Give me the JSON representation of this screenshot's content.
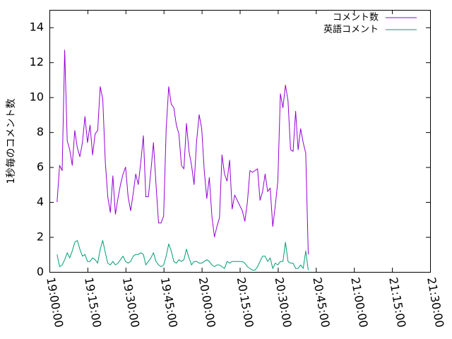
{
  "chart_data": {
    "type": "line",
    "title": "",
    "xlabel": "",
    "ylabel": "1秒毎のコメント数",
    "xlim": [
      "19:00:00",
      "21:30:00"
    ],
    "ylim": [
      0,
      15
    ],
    "grid": false,
    "legend_position": "top-right",
    "yticks": [
      0,
      2,
      4,
      6,
      8,
      10,
      12,
      14
    ],
    "xticks": [
      "19:00:00",
      "19:15:00",
      "19:30:00",
      "19:45:00",
      "20:00:00",
      "20:15:00",
      "20:30:00",
      "20:45:00",
      "21:00:00",
      "21:15:00",
      "21:30:00"
    ],
    "series": [
      {
        "name": "コメント数",
        "color": "#9400d3",
        "points": [
          [
            "19:03:00",
            4.0
          ],
          [
            "19:04:00",
            6.1
          ],
          [
            "19:05:00",
            5.8
          ],
          [
            "19:06:00",
            12.7
          ],
          [
            "19:07:00",
            7.5
          ],
          [
            "19:08:00",
            7.0
          ],
          [
            "19:09:00",
            6.1
          ],
          [
            "19:10:00",
            8.1
          ],
          [
            "19:11:00",
            7.1
          ],
          [
            "19:12:00",
            6.6
          ],
          [
            "19:13:00",
            7.4
          ],
          [
            "19:14:00",
            8.9
          ],
          [
            "19:15:00",
            7.4
          ],
          [
            "19:16:00",
            8.4
          ],
          [
            "19:17:00",
            6.7
          ],
          [
            "19:18:00",
            7.9
          ],
          [
            "19:19:00",
            8.1
          ],
          [
            "19:20:00",
            10.6
          ],
          [
            "19:21:00",
            9.9
          ],
          [
            "19:22:00",
            6.3
          ],
          [
            "19:23:00",
            4.3
          ],
          [
            "19:24:00",
            3.4
          ],
          [
            "19:25:00",
            5.5
          ],
          [
            "19:26:00",
            3.3
          ],
          [
            "19:27:00",
            4.2
          ],
          [
            "19:28:00",
            5.0
          ],
          [
            "19:29:00",
            5.6
          ],
          [
            "19:30:00",
            6.0
          ],
          [
            "19:31:00",
            4.3
          ],
          [
            "19:32:00",
            3.5
          ],
          [
            "19:33:00",
            4.5
          ],
          [
            "19:34:00",
            5.6
          ],
          [
            "19:35:00",
            5.0
          ],
          [
            "19:36:00",
            6.3
          ],
          [
            "19:37:00",
            7.8
          ],
          [
            "19:38:00",
            4.3
          ],
          [
            "19:39:00",
            4.3
          ],
          [
            "19:40:00",
            5.8
          ],
          [
            "19:41:00",
            7.4
          ],
          [
            "19:42:00",
            5.0
          ],
          [
            "19:43:00",
            2.8
          ],
          [
            "19:44:00",
            2.8
          ],
          [
            "19:45:00",
            3.2
          ],
          [
            "19:46:00",
            8.2
          ],
          [
            "19:47:00",
            10.6
          ],
          [
            "19:48:00",
            9.6
          ],
          [
            "19:49:00",
            9.4
          ],
          [
            "19:50:00",
            8.4
          ],
          [
            "19:51:00",
            7.9
          ],
          [
            "19:52:00",
            6.1
          ],
          [
            "19:53:00",
            5.9
          ],
          [
            "19:54:00",
            8.5
          ],
          [
            "19:55:00",
            6.9
          ],
          [
            "19:56:00",
            6.1
          ],
          [
            "19:57:00",
            5.0
          ],
          [
            "19:58:00",
            7.5
          ],
          [
            "19:59:00",
            9.0
          ],
          [
            "20:00:00",
            8.2
          ],
          [
            "20:01:00",
            5.8
          ],
          [
            "20:02:00",
            4.2
          ],
          [
            "20:03:00",
            5.4
          ],
          [
            "20:04:00",
            3.2
          ],
          [
            "20:05:00",
            2.0
          ],
          [
            "20:06:00",
            2.6
          ],
          [
            "20:07:00",
            3.1
          ],
          [
            "20:08:00",
            6.7
          ],
          [
            "20:09:00",
            5.6
          ],
          [
            "20:10:00",
            5.2
          ],
          [
            "20:11:00",
            6.4
          ],
          [
            "20:12:00",
            3.6
          ],
          [
            "20:13:00",
            4.4
          ],
          [
            "20:14:00",
            4.1
          ],
          [
            "20:15:00",
            3.8
          ],
          [
            "20:16:00",
            3.5
          ],
          [
            "20:17:00",
            2.9
          ],
          [
            "20:18:00",
            4.0
          ],
          [
            "20:19:00",
            5.8
          ],
          [
            "20:20:00",
            5.7
          ],
          [
            "20:21:00",
            5.8
          ],
          [
            "20:22:00",
            5.9
          ],
          [
            "20:23:00",
            4.1
          ],
          [
            "20:24:00",
            4.6
          ],
          [
            "20:25:00",
            5.6
          ],
          [
            "20:26:00",
            4.6
          ],
          [
            "20:27:00",
            4.8
          ],
          [
            "20:28:00",
            2.6
          ],
          [
            "20:29:00",
            3.8
          ],
          [
            "20:30:00",
            5.2
          ],
          [
            "20:31:00",
            10.2
          ],
          [
            "20:32:00",
            9.4
          ],
          [
            "20:33:00",
            10.7
          ],
          [
            "20:34:00",
            9.8
          ],
          [
            "20:35:00",
            7.0
          ],
          [
            "20:36:00",
            6.9
          ],
          [
            "20:37:00",
            9.2
          ],
          [
            "20:38:00",
            7.0
          ],
          [
            "20:39:00",
            8.2
          ],
          [
            "20:40:00",
            7.4
          ],
          [
            "20:41:00",
            6.8
          ],
          [
            "20:42:00",
            1.0
          ]
        ]
      },
      {
        "name": "英語コメント",
        "color": "#009e73",
        "points": [
          [
            "19:03:00",
            1.0
          ],
          [
            "19:04:00",
            0.3
          ],
          [
            "19:05:00",
            0.4
          ],
          [
            "19:06:00",
            0.7
          ],
          [
            "19:07:00",
            1.1
          ],
          [
            "19:08:00",
            0.8
          ],
          [
            "19:09:00",
            1.2
          ],
          [
            "19:10:00",
            1.7
          ],
          [
            "19:11:00",
            1.8
          ],
          [
            "19:12:00",
            1.3
          ],
          [
            "19:13:00",
            0.9
          ],
          [
            "19:14:00",
            1.0
          ],
          [
            "19:15:00",
            0.6
          ],
          [
            "19:16:00",
            0.6
          ],
          [
            "19:17:00",
            0.8
          ],
          [
            "19:18:00",
            0.7
          ],
          [
            "19:19:00",
            0.5
          ],
          [
            "19:20:00",
            1.3
          ],
          [
            "19:21:00",
            1.8
          ],
          [
            "19:22:00",
            1.1
          ],
          [
            "19:23:00",
            0.5
          ],
          [
            "19:24:00",
            0.4
          ],
          [
            "19:25:00",
            0.6
          ],
          [
            "19:26:00",
            0.4
          ],
          [
            "19:27:00",
            0.5
          ],
          [
            "19:28:00",
            0.7
          ],
          [
            "19:29:00",
            0.9
          ],
          [
            "19:30:00",
            0.6
          ],
          [
            "19:31:00",
            0.5
          ],
          [
            "19:32:00",
            0.6
          ],
          [
            "19:33:00",
            0.9
          ],
          [
            "19:34:00",
            1.0
          ],
          [
            "19:35:00",
            1.0
          ],
          [
            "19:36:00",
            1.1
          ],
          [
            "19:37:00",
            1.0
          ],
          [
            "19:38:00",
            0.4
          ],
          [
            "19:39:00",
            0.6
          ],
          [
            "19:40:00",
            0.8
          ],
          [
            "19:41:00",
            1.1
          ],
          [
            "19:42:00",
            0.6
          ],
          [
            "19:43:00",
            0.4
          ],
          [
            "19:44:00",
            0.3
          ],
          [
            "19:45:00",
            0.4
          ],
          [
            "19:46:00",
            0.9
          ],
          [
            "19:47:00",
            1.6
          ],
          [
            "19:48:00",
            1.2
          ],
          [
            "19:49:00",
            0.6
          ],
          [
            "19:50:00",
            0.5
          ],
          [
            "19:51:00",
            0.7
          ],
          [
            "19:52:00",
            0.6
          ],
          [
            "19:53:00",
            0.7
          ],
          [
            "19:54:00",
            1.3
          ],
          [
            "19:55:00",
            0.8
          ],
          [
            "19:56:00",
            0.4
          ],
          [
            "19:57:00",
            0.6
          ],
          [
            "19:58:00",
            0.6
          ],
          [
            "19:59:00",
            0.5
          ],
          [
            "20:00:00",
            0.5
          ],
          [
            "20:01:00",
            0.6
          ],
          [
            "20:02:00",
            0.7
          ],
          [
            "20:03:00",
            0.6
          ],
          [
            "20:04:00",
            0.4
          ],
          [
            "20:05:00",
            0.3
          ],
          [
            "20:06:00",
            0.4
          ],
          [
            "20:07:00",
            0.4
          ],
          [
            "20:08:00",
            0.3
          ],
          [
            "20:09:00",
            0.2
          ],
          [
            "20:10:00",
            0.6
          ],
          [
            "20:11:00",
            0.5
          ],
          [
            "20:12:00",
            0.6
          ],
          [
            "20:13:00",
            0.6
          ],
          [
            "20:14:00",
            0.6
          ],
          [
            "20:15:00",
            0.6
          ],
          [
            "20:16:00",
            0.6
          ],
          [
            "20:17:00",
            0.5
          ],
          [
            "20:18:00",
            0.3
          ],
          [
            "20:19:00",
            0.2
          ],
          [
            "20:20:00",
            0.1
          ],
          [
            "20:21:00",
            0.1
          ],
          [
            "20:22:00",
            0.3
          ],
          [
            "20:23:00",
            0.6
          ],
          [
            "20:24:00",
            0.9
          ],
          [
            "20:25:00",
            0.9
          ],
          [
            "20:26:00",
            0.6
          ],
          [
            "20:27:00",
            0.8
          ],
          [
            "20:28:00",
            0.2
          ],
          [
            "20:29:00",
            0.5
          ],
          [
            "20:30:00",
            0.4
          ],
          [
            "20:31:00",
            0.6
          ],
          [
            "20:32:00",
            0.6
          ],
          [
            "20:33:00",
            1.7
          ],
          [
            "20:34:00",
            0.6
          ],
          [
            "20:35:00",
            0.5
          ],
          [
            "20:36:00",
            0.5
          ],
          [
            "20:37:00",
            0.2
          ],
          [
            "20:38:00",
            0.2
          ],
          [
            "20:39:00",
            0.4
          ],
          [
            "20:40:00",
            0.2
          ],
          [
            "20:41:00",
            1.2
          ],
          [
            "20:42:00",
            0.1
          ]
        ]
      }
    ]
  }
}
